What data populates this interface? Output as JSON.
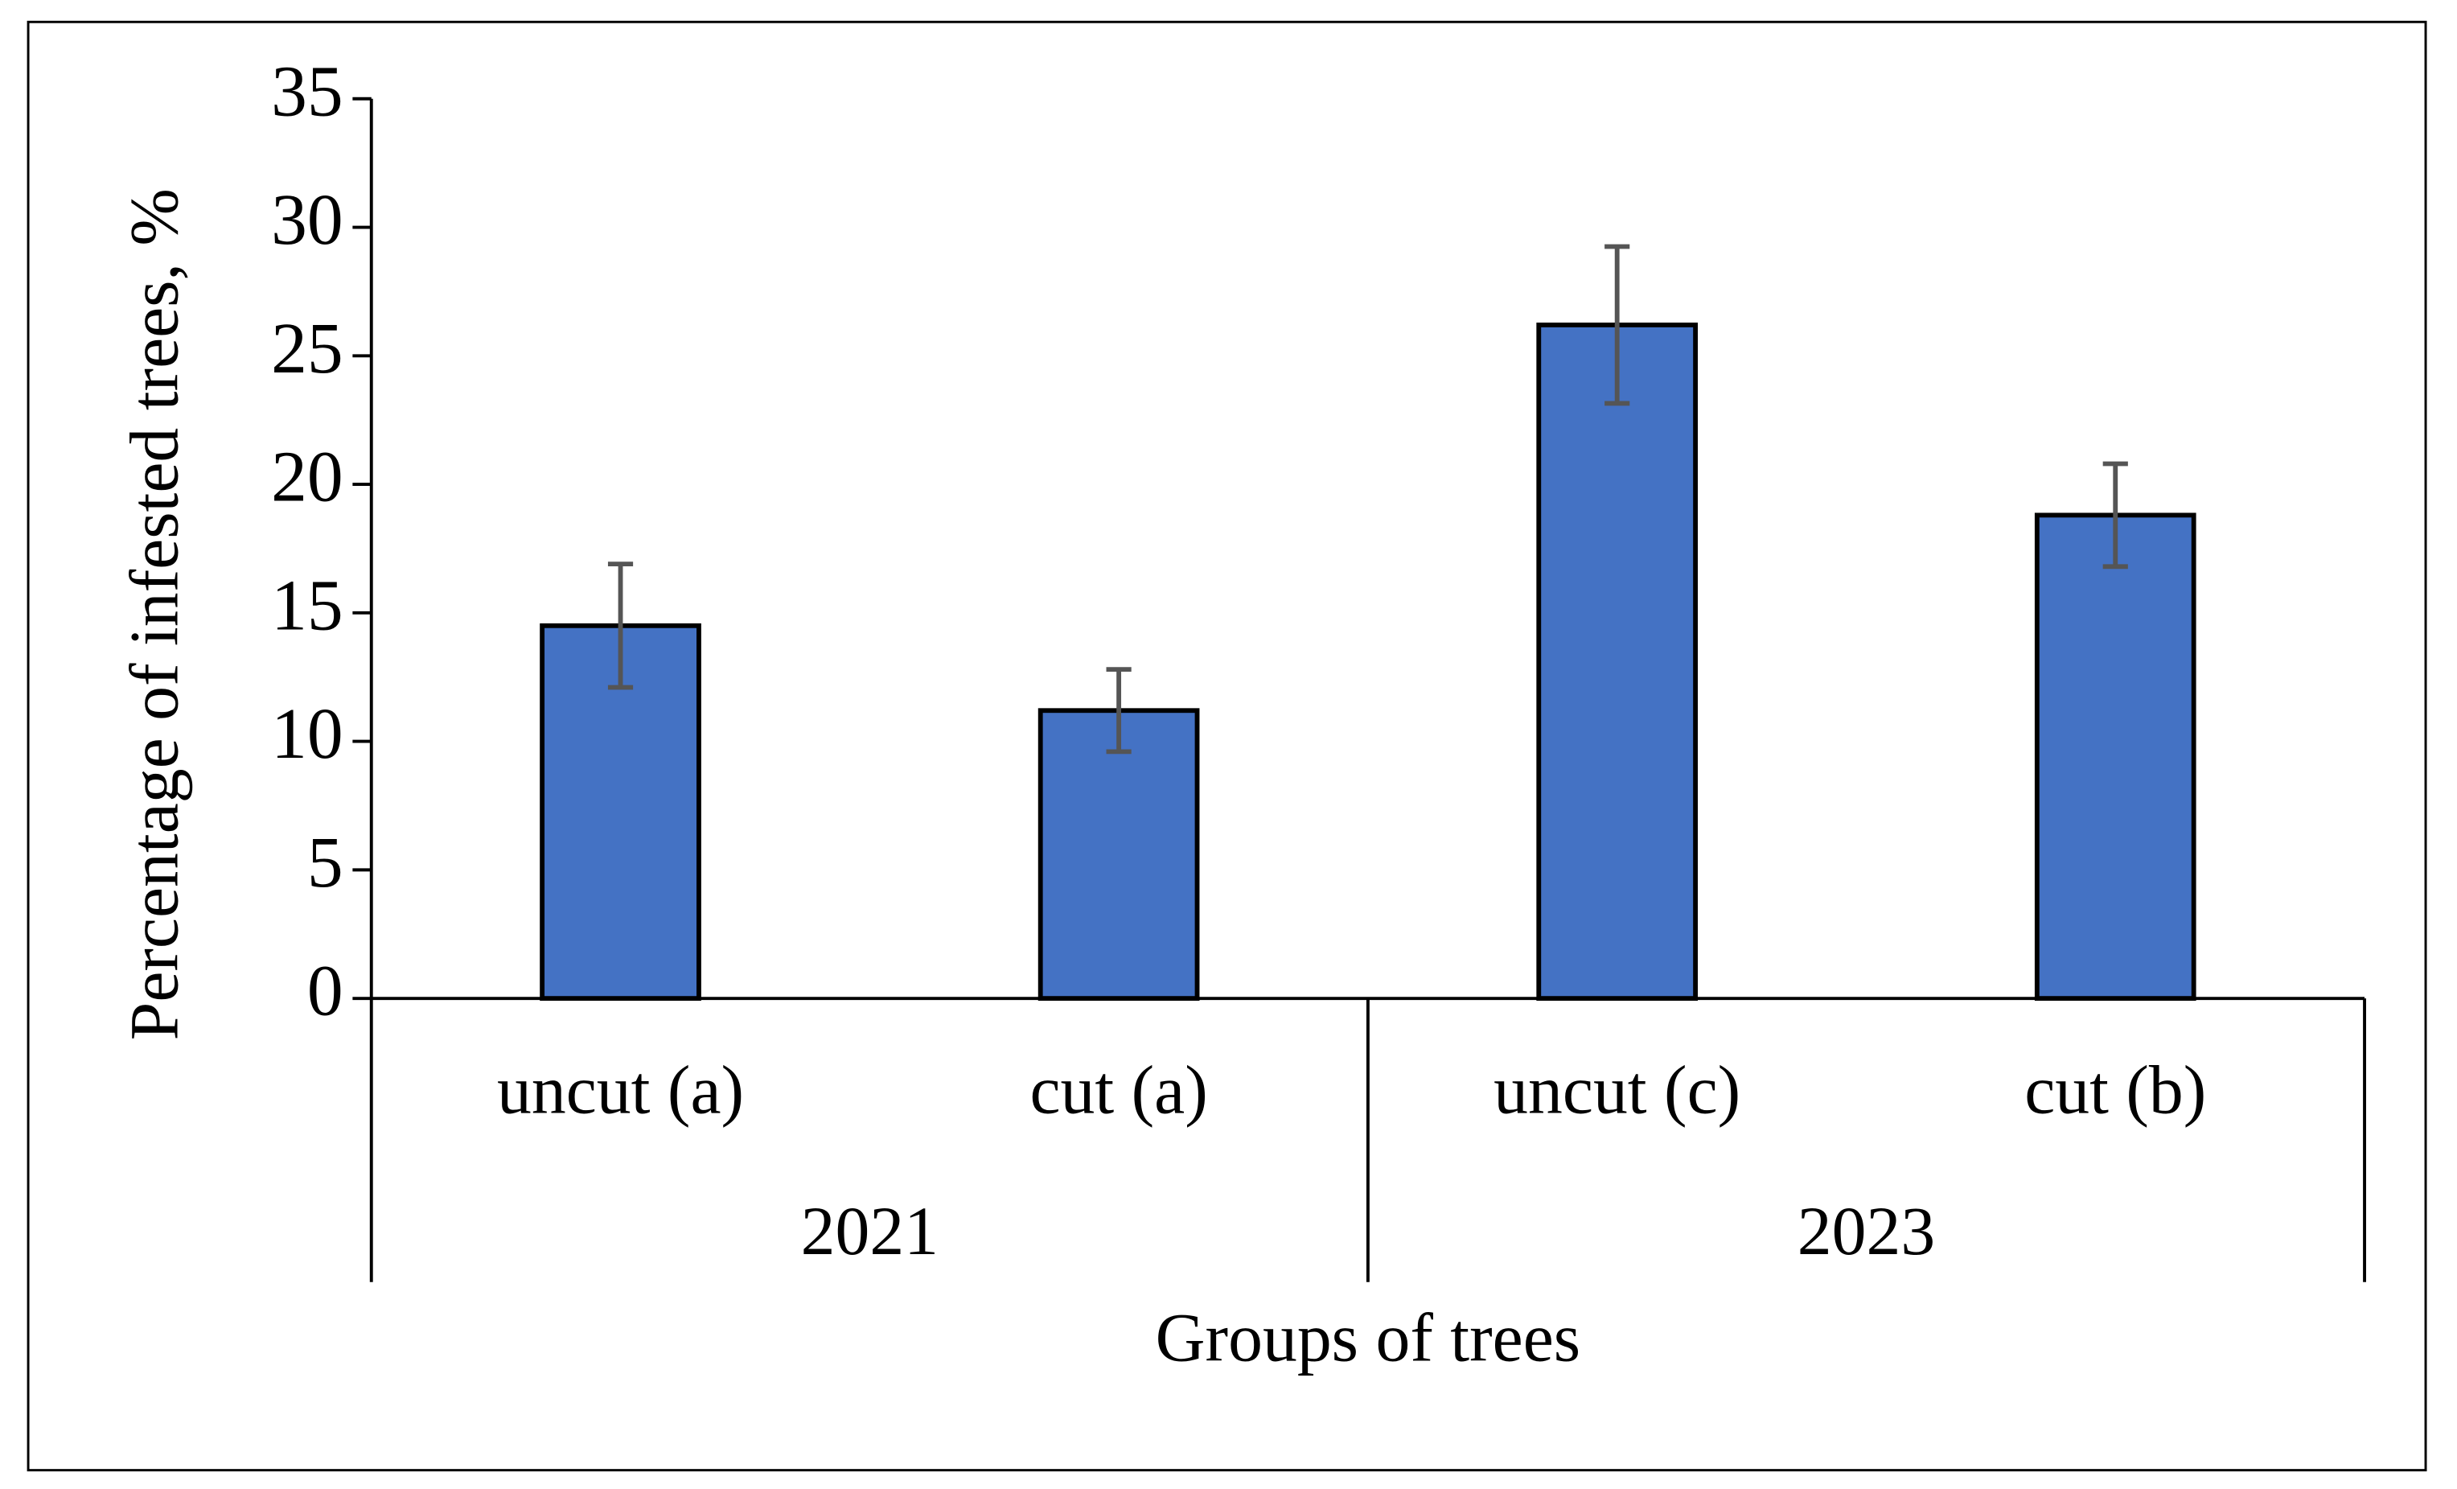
{
  "chart_data": {
    "type": "bar",
    "y_label": "Percentage of infested trees, %",
    "x_label": "Groups of trees",
    "categories": [
      "uncut (a)",
      "cut (a)",
      "uncut (c)",
      "cut (b)"
    ],
    "groups": [
      "2021",
      "2021",
      "2023",
      "2023"
    ],
    "values": [
      14.5,
      11.2,
      26.2,
      18.8
    ],
    "errors": [
      2.4,
      1.6,
      3.05,
      2.0
    ],
    "color": "#4472c4",
    "error_color": "#555555",
    "ylim": [
      0,
      35
    ],
    "yticks": [
      0,
      5,
      10,
      15,
      20,
      25,
      30,
      35
    ],
    "grid": false
  }
}
